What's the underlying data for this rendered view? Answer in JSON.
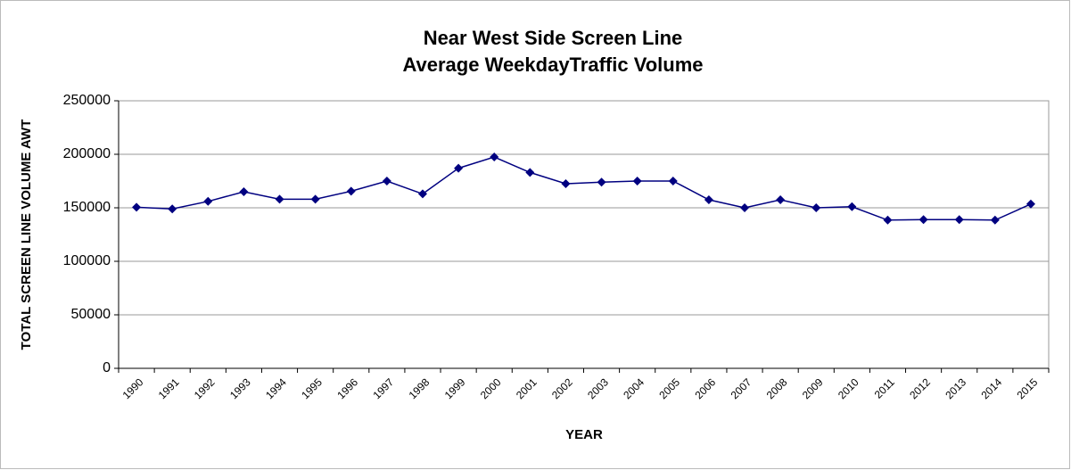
{
  "chart_data": {
    "type": "line",
    "title": [
      "Near West Side Screen Line",
      "Average WeekdayTraffic Volume"
    ],
    "x_label": "YEAR",
    "y_label": "TOTAL SCREEN LINE VOLUME AWT",
    "categories": [
      "1990",
      "1991",
      "1992",
      "1993",
      "1994",
      "1995",
      "1996",
      "1997",
      "1998",
      "1999",
      "2000",
      "2001",
      "2002",
      "2003",
      "2004",
      "2005",
      "2006",
      "2007",
      "2008",
      "2009",
      "2010",
      "2011",
      "2012",
      "2013",
      "2014",
      "2015"
    ],
    "values": [
      150500,
      149000,
      156000,
      165000,
      158000,
      158000,
      165500,
      175000,
      163000,
      187000,
      197500,
      183000,
      172500,
      174000,
      175000,
      175000,
      157500,
      150000,
      157500,
      150000,
      151000,
      138500,
      139000,
      139000,
      138500,
      153500
    ],
    "color": "#000080",
    "ylim": [
      0,
      250000
    ],
    "yticks": [
      0,
      50000,
      100000,
      150000,
      200000,
      250000
    ],
    "grid": true
  }
}
